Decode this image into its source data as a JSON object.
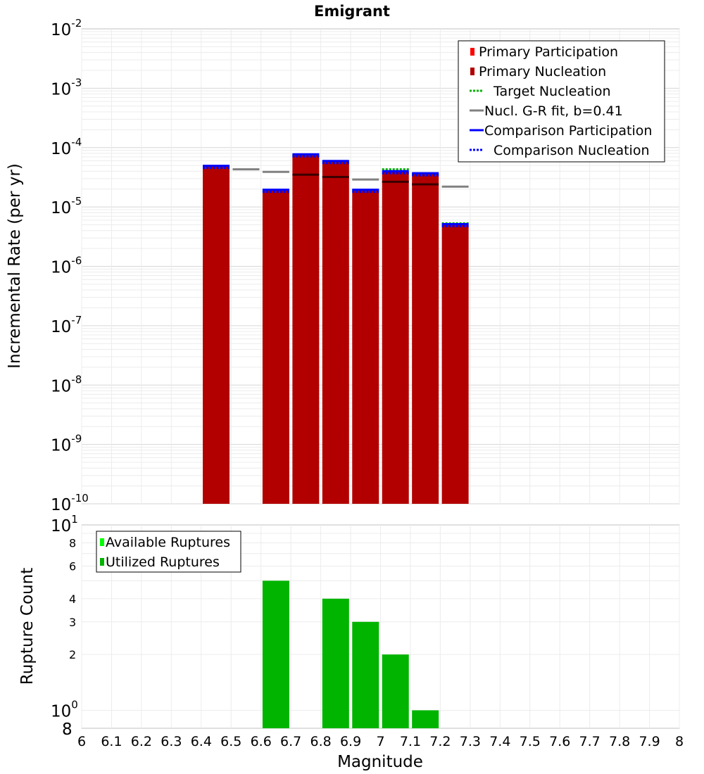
{
  "chart_data": [
    {
      "type": "bar",
      "panel": "top",
      "title": "Emigrant",
      "ylabel": "Incremental Rate (per yr)",
      "yscale": "log",
      "ylim": [
        1e-10,
        0.01
      ],
      "xlim": [
        6,
        8
      ],
      "ytick_labels": [
        {
          "base": "10",
          "exp": "-10"
        },
        {
          "base": "10",
          "exp": "-9"
        },
        {
          "base": "10",
          "exp": "-8"
        },
        {
          "base": "10",
          "exp": "-7"
        },
        {
          "base": "10",
          "exp": "-6"
        },
        {
          "base": "10",
          "exp": "-5"
        },
        {
          "base": "10",
          "exp": "-4"
        },
        {
          "base": "10",
          "exp": "-3"
        },
        {
          "base": "10",
          "exp": "-2"
        }
      ],
      "x": [
        6.45,
        6.65,
        6.75,
        6.85,
        6.95,
        7.05,
        7.15,
        7.25
      ],
      "series": [
        {
          "name": "Primary Participation",
          "color": "#ff0000",
          "style": "bar",
          "values": [
            4.8e-05,
            1.9e-05,
            7.5e-05,
            5.8e-05,
            1.9e-05,
            3.9e-05,
            3.6e-05,
            5e-06
          ]
        },
        {
          "name": "Primary Nucleation",
          "color": "#b20000",
          "style": "bar",
          "values": [
            4.8e-05,
            1.9e-05,
            7.5e-05,
            5.8e-05,
            1.9e-05,
            3.9e-05,
            3.6e-05,
            5e-06
          ]
        },
        {
          "name": "Target Nucleation",
          "color": "#00b400",
          "style": "dotted",
          "values": [
            4.8e-05,
            1.9e-05,
            7.5e-05,
            5.8e-05,
            1.9e-05,
            4.3e-05,
            3.6e-05,
            5.3e-06
          ]
        },
        {
          "name": "Nucl. G-R fit, b=0.41",
          "color": "#808080",
          "style": "solid",
          "x": [
            6.55,
            6.65,
            6.75,
            6.85,
            6.95,
            7.05,
            7.15,
            7.25
          ],
          "values": [
            4.3e-05,
            3.9e-05,
            3.5e-05,
            3.2e-05,
            2.9e-05,
            2.65e-05,
            2.4e-05,
            2.2e-05
          ]
        },
        {
          "name": "Comparison Participation",
          "color": "#0000ff",
          "style": "solid",
          "values": [
            4.8e-05,
            1.9e-05,
            7.5e-05,
            5.8e-05,
            1.9e-05,
            3.9e-05,
            3.6e-05,
            5e-06
          ]
        },
        {
          "name": "Comparison Nucleation",
          "color": "#0000ff",
          "style": "dotted",
          "values": [
            4.8e-05,
            1.9e-05,
            7.5e-05,
            5.8e-05,
            1.9e-05,
            3.9e-05,
            3.6e-05,
            5e-06
          ]
        }
      ],
      "grid": true,
      "legend_position": "top-right"
    },
    {
      "type": "bar",
      "panel": "bottom",
      "ylabel": "Rupture Count",
      "xlabel": "Magnitude",
      "yscale": "log",
      "ylim": [
        0.8,
        10
      ],
      "xlim": [
        6,
        8
      ],
      "ytick_labels": [
        {
          "value": 0.8,
          "base": "8",
          "exp": ""
        },
        {
          "value": 1,
          "base": "10",
          "exp": "0"
        },
        {
          "value": 2,
          "base": "2",
          "exp": ""
        },
        {
          "value": 3,
          "base": "3",
          "exp": ""
        },
        {
          "value": 4,
          "base": "4",
          "exp": ""
        },
        {
          "value": 6,
          "base": "6",
          "exp": ""
        },
        {
          "value": 8,
          "base": "8",
          "exp": ""
        },
        {
          "value": 10,
          "base": "10",
          "exp": "1"
        }
      ],
      "xtick_labels": [
        "6",
        "6.1",
        "6.2",
        "6.3",
        "6.4",
        "6.5",
        "6.6",
        "6.7",
        "6.8",
        "6.9",
        "7",
        "7.1",
        "7.2",
        "7.3",
        "7.4",
        "7.5",
        "7.6",
        "7.7",
        "7.8",
        "7.9",
        "8"
      ],
      "x": [
        6.65,
        6.85,
        6.95,
        7.05,
        7.15
      ],
      "series": [
        {
          "name": "Available Ruptures",
          "color": "#00ff00",
          "style": "bar",
          "values": [
            5,
            4,
            3,
            2,
            1
          ]
        },
        {
          "name": "Utilized Ruptures",
          "color": "#00b400",
          "style": "bar",
          "values": [
            5,
            4,
            3,
            2,
            1
          ]
        }
      ],
      "grid": true,
      "legend_position": "top-left"
    }
  ]
}
